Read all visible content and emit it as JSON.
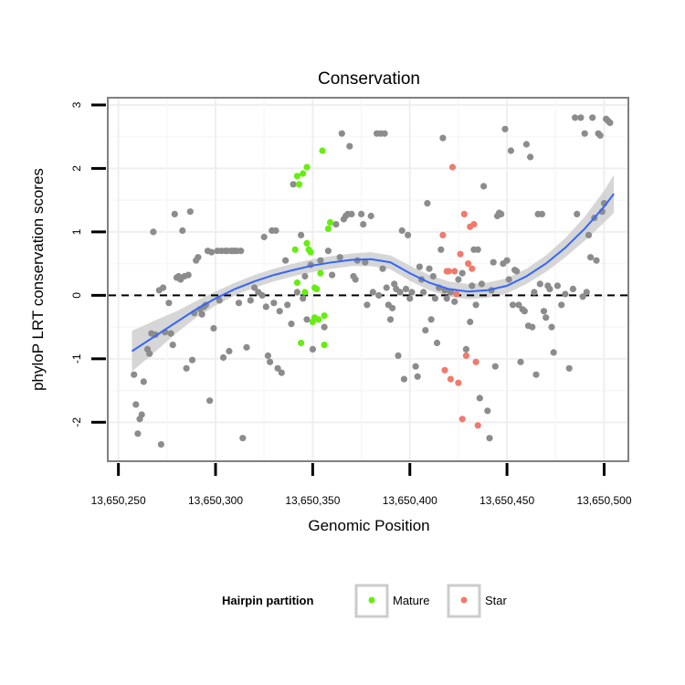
{
  "chart_data": {
    "type": "scatter",
    "title": "Conservation",
    "xlabel": "Genomic Position",
    "ylabel": "phyloP LRT conservation scores",
    "xlim": [
      13650245,
      13650512
    ],
    "ylim": [
      -2.6,
      3.1
    ],
    "x_ticks": [
      13650250,
      13650300,
      13650350,
      13650400,
      13650450,
      13650500
    ],
    "x_tick_labels": [
      "13,650,250",
      "13,650,300",
      "13,650,350",
      "13,650,400",
      "13,650,450",
      "13,650,500"
    ],
    "y_ticks": [
      -2,
      -1,
      0,
      1,
      2,
      3
    ],
    "y_tick_labels": [
      "-2",
      "-1",
      "0",
      "1",
      "2",
      "3"
    ],
    "reference_line": {
      "y": 0,
      "style": "dashed",
      "color": "#000000"
    },
    "grid": true,
    "legend": {
      "title": "Hairpin partition",
      "position": "bottom",
      "entries": [
        {
          "label": "Mature",
          "color": "#66ee11"
        },
        {
          "label": "Star",
          "color": "#f07b6c"
        }
      ]
    },
    "colors": {
      "other": "#8c8c8c",
      "Mature": "#66ee11",
      "Star": "#f07b6c",
      "smooth": "#3366ff",
      "ribbon": "#cccccc"
    },
    "series": [
      {
        "name": "",
        "group": "other",
        "points": [
          [
            13650258,
            -1.25
          ],
          [
            13650259,
            -1.72
          ],
          [
            13650260,
            -2.18
          ],
          [
            13650261,
            -1.95
          ],
          [
            13650262,
            -1.88
          ],
          [
            13650263,
            -1.36
          ],
          [
            13650265,
            -0.85
          ],
          [
            13650266,
            -0.92
          ],
          [
            13650267,
            -0.6
          ],
          [
            13650268,
            1.0
          ],
          [
            13650269,
            -0.62
          ],
          [
            13650271,
            0.08
          ],
          [
            13650272,
            -2.35
          ],
          [
            13650273,
            0.12
          ],
          [
            13650274,
            -0.58
          ],
          [
            13650276,
            -0.12
          ],
          [
            13650277,
            -0.6
          ],
          [
            13650278,
            -0.78
          ],
          [
            13650279,
            1.28
          ],
          [
            13650280,
            0.28
          ],
          [
            13650281,
            0.3
          ],
          [
            13650282,
            0.25
          ],
          [
            13650283,
            1.02
          ],
          [
            13650284,
            0.3
          ],
          [
            13650285,
            -1.15
          ],
          [
            13650286,
            0.32
          ],
          [
            13650287,
            1.32
          ],
          [
            13650288,
            -1.02
          ],
          [
            13650289,
            -0.28
          ],
          [
            13650290,
            0.55
          ],
          [
            13650291,
            0.6
          ],
          [
            13650292,
            -0.22
          ],
          [
            13650293,
            -0.3
          ],
          [
            13650294,
            -0.18
          ],
          [
            13650295,
            -0.15
          ],
          [
            13650296,
            0.7
          ],
          [
            13650297,
            -1.66
          ],
          [
            13650298,
            0.68
          ],
          [
            13650299,
            -0.52
          ],
          [
            13650301,
            0.7
          ],
          [
            13650302,
            -0.08
          ],
          [
            13650303,
            0.7
          ],
          [
            13650304,
            -0.98
          ],
          [
            13650305,
            0.7
          ],
          [
            13650306,
            0.7
          ],
          [
            13650307,
            -0.88
          ],
          [
            13650308,
            0.7
          ],
          [
            13650309,
            0.7
          ],
          [
            13650310,
            0.7
          ],
          [
            13650311,
            0.7
          ],
          [
            13650312,
            -0.12
          ],
          [
            13650313,
            0.7
          ],
          [
            13650314,
            -2.25
          ],
          [
            13650316,
            -0.82
          ],
          [
            13650318,
            -0.08
          ],
          [
            13650320,
            0.12
          ],
          [
            13650322,
            0.05
          ],
          [
            13650324,
            0.0
          ],
          [
            13650325,
            0.92
          ],
          [
            13650326,
            -0.18
          ],
          [
            13650327,
            -0.95
          ],
          [
            13650328,
            -1.05
          ],
          [
            13650329,
            1.02
          ],
          [
            13650330,
            -0.12
          ],
          [
            13650331,
            1.02
          ],
          [
            13650332,
            -1.15
          ],
          [
            13650333,
            -0.25
          ],
          [
            13650334,
            -1.22
          ],
          [
            13650336,
            0.55
          ],
          [
            13650337,
            -0.15
          ],
          [
            13650339,
            -0.45
          ],
          [
            13650340,
            1.75
          ],
          [
            13650342,
            0.05
          ],
          [
            13650344,
            0.95
          ],
          [
            13650345,
            -0.05
          ],
          [
            13650346,
            0.3
          ],
          [
            13650347,
            -0.38
          ],
          [
            13650349,
            0.48
          ],
          [
            13650350,
            -0.85
          ],
          [
            13650352,
            0.1
          ],
          [
            13650354,
            0.55
          ],
          [
            13650356,
            -0.5
          ],
          [
            13650358,
            0.7
          ],
          [
            13650360,
            0.32
          ],
          [
            13650362,
            1.12
          ],
          [
            13650364,
            0.6
          ],
          [
            13650365,
            2.55
          ],
          [
            13650366,
            1.2
          ],
          [
            13650367,
            1.25
          ],
          [
            13650368,
            1.28
          ],
          [
            13650369,
            2.35
          ],
          [
            13650370,
            1.28
          ],
          [
            13650371,
            0.3
          ],
          [
            13650372,
            0.25
          ],
          [
            13650373,
            0.55
          ],
          [
            13650375,
            1.28
          ],
          [
            13650376,
            1.12
          ],
          [
            13650377,
            0.52
          ],
          [
            13650378,
            -0.15
          ],
          [
            13650380,
            1.25
          ],
          [
            13650381,
            0.05
          ],
          [
            13650383,
            2.55
          ],
          [
            13650384,
            0.0
          ],
          [
            13650385,
            2.55
          ],
          [
            13650386,
            0.42
          ],
          [
            13650387,
            2.55
          ],
          [
            13650388,
            0.12
          ],
          [
            13650389,
            -0.15
          ],
          [
            13650390,
            -0.38
          ],
          [
            13650391,
            -0.2
          ],
          [
            13650392,
            0.18
          ],
          [
            13650393,
            0.1
          ],
          [
            13650394,
            -0.95
          ],
          [
            13650395,
            0.05
          ],
          [
            13650396,
            1.02
          ],
          [
            13650397,
            -1.32
          ],
          [
            13650398,
            0.1
          ],
          [
            13650399,
            0.95
          ],
          [
            13650400,
            -0.05
          ],
          [
            13650401,
            0.05
          ],
          [
            13650403,
            -1.12
          ],
          [
            13650404,
            -1.28
          ],
          [
            13650405,
            0.45
          ],
          [
            13650406,
            0.25
          ],
          [
            13650407,
            0.05
          ],
          [
            13650408,
            -0.55
          ],
          [
            13650409,
            1.45
          ],
          [
            13650410,
            0.42
          ],
          [
            13650411,
            -0.38
          ],
          [
            13650412,
            0.3
          ],
          [
            13650413,
            -0.05
          ],
          [
            13650414,
            -0.75
          ],
          [
            13650415,
            0.12
          ],
          [
            13650416,
            0.72
          ],
          [
            13650417,
            2.48
          ],
          [
            13650418,
            0.08
          ],
          [
            13650419,
            -0.05
          ],
          [
            13650421,
            0.05
          ],
          [
            13650423,
            -0.1
          ],
          [
            13650425,
            0.25
          ],
          [
            13650427,
            0.35
          ],
          [
            13650429,
            -0.85
          ],
          [
            13650431,
            -0.42
          ],
          [
            13650432,
            0.15
          ],
          [
            13650433,
            0.72
          ],
          [
            13650434,
            -0.15
          ],
          [
            13650435,
            0.72
          ],
          [
            13650436,
            -1.62
          ],
          [
            13650437,
            0.18
          ],
          [
            13650438,
            1.72
          ],
          [
            13650440,
            -1.82
          ],
          [
            13650441,
            -2.25
          ],
          [
            13650442,
            0.08
          ],
          [
            13650443,
            0.52
          ],
          [
            13650444,
            -1.12
          ],
          [
            13650445,
            1.25
          ],
          [
            13650446,
            1.3
          ],
          [
            13650447,
            1.28
          ],
          [
            13650448,
            0.5
          ],
          [
            13650449,
            2.62
          ],
          [
            13650450,
            0.55
          ],
          [
            13650451,
            0.25
          ],
          [
            13650452,
            2.28
          ],
          [
            13650453,
            -0.15
          ],
          [
            13650454,
            0.4
          ],
          [
            13650455,
            0.38
          ],
          [
            13650456,
            -0.15
          ],
          [
            13650457,
            -1.05
          ],
          [
            13650458,
            -0.22
          ],
          [
            13650459,
            -0.25
          ],
          [
            13650460,
            2.38
          ],
          [
            13650461,
            -0.48
          ],
          [
            13650462,
            2.18
          ],
          [
            13650463,
            -0.5
          ],
          [
            13650464,
            0.05
          ],
          [
            13650465,
            -1.25
          ],
          [
            13650466,
            1.28
          ],
          [
            13650467,
            0.18
          ],
          [
            13650468,
            1.28
          ],
          [
            13650469,
            -0.25
          ],
          [
            13650470,
            -0.35
          ],
          [
            13650471,
            0.15
          ],
          [
            13650472,
            0.1
          ],
          [
            13650473,
            -0.5
          ],
          [
            13650474,
            -0.9
          ],
          [
            13650476,
            0.15
          ],
          [
            13650478,
            -0.15
          ],
          [
            13650480,
            0.02
          ],
          [
            13650482,
            -1.15
          ],
          [
            13650484,
            0.1
          ],
          [
            13650485,
            2.8
          ],
          [
            13650486,
            1.28
          ],
          [
            13650488,
            2.8
          ],
          [
            13650489,
            -0.02
          ],
          [
            13650490,
            2.55
          ],
          [
            13650491,
            0.05
          ],
          [
            13650492,
            0.95
          ],
          [
            13650493,
            0.6
          ],
          [
            13650494,
            2.8
          ],
          [
            13650495,
            1.22
          ],
          [
            13650496,
            0.55
          ],
          [
            13650497,
            2.55
          ],
          [
            13650498,
            2.52
          ],
          [
            13650499,
            1.32
          ],
          [
            13650500,
            1.45
          ],
          [
            13650501,
            2.78
          ],
          [
            13650502,
            2.75
          ],
          [
            13650503,
            2.72
          ]
        ]
      },
      {
        "name": "Mature",
        "group": "Mature",
        "points": [
          [
            13650341,
            0.72
          ],
          [
            13650342,
            1.88
          ],
          [
            13650342,
            0.2
          ],
          [
            13650343,
            1.75
          ],
          [
            13650344,
            -0.75
          ],
          [
            13650345,
            1.92
          ],
          [
            13650346,
            0.05
          ],
          [
            13650347,
            2.02
          ],
          [
            13650347,
            0.82
          ],
          [
            13650348,
            0.72
          ],
          [
            13650349,
            0.68
          ],
          [
            13650350,
            -0.42
          ],
          [
            13650351,
            -0.35
          ],
          [
            13650351,
            0.12
          ],
          [
            13650352,
            0.1
          ],
          [
            13650353,
            -0.38
          ],
          [
            13650354,
            0.35
          ],
          [
            13650355,
            2.28
          ],
          [
            13650356,
            -0.32
          ],
          [
            13650356,
            -0.78
          ],
          [
            13650358,
            1.05
          ],
          [
            13650359,
            1.15
          ]
        ]
      },
      {
        "name": "Star",
        "group": "Star",
        "points": [
          [
            13650417,
            0.95
          ],
          [
            13650418,
            -1.18
          ],
          [
            13650419,
            0.38
          ],
          [
            13650420,
            0.38
          ],
          [
            13650421,
            -1.32
          ],
          [
            13650422,
            2.02
          ],
          [
            13650423,
            0.38
          ],
          [
            13650424,
            0.02
          ],
          [
            13650425,
            -1.38
          ],
          [
            13650426,
            0.65
          ],
          [
            13650427,
            -1.95
          ],
          [
            13650428,
            1.28
          ],
          [
            13650429,
            -0.95
          ],
          [
            13650430,
            0.5
          ],
          [
            13650431,
            1.08
          ],
          [
            13650432,
            0.42
          ],
          [
            13650433,
            1.12
          ],
          [
            13650434,
            -1.05
          ],
          [
            13650435,
            -2.05
          ]
        ]
      }
    ],
    "smooth_line": {
      "x": [
        13650257,
        13650270,
        13650280,
        13650290,
        13650300,
        13650310,
        13650320,
        13650330,
        13650340,
        13650350,
        13650360,
        13650370,
        13650380,
        13650390,
        13650400,
        13650410,
        13650420,
        13650430,
        13650440,
        13650450,
        13650460,
        13650470,
        13650480,
        13650490,
        13650500,
        13650505
      ],
      "y": [
        -0.88,
        -0.62,
        -0.42,
        -0.22,
        -0.05,
        0.1,
        0.22,
        0.32,
        0.4,
        0.47,
        0.52,
        0.56,
        0.57,
        0.52,
        0.35,
        0.2,
        0.1,
        0.06,
        0.08,
        0.15,
        0.3,
        0.5,
        0.75,
        1.05,
        1.4,
        1.6
      ],
      "ribbon_half_width": [
        0.32,
        0.24,
        0.17,
        0.13,
        0.11,
        0.1,
        0.1,
        0.1,
        0.1,
        0.1,
        0.1,
        0.1,
        0.11,
        0.11,
        0.12,
        0.12,
        0.12,
        0.12,
        0.12,
        0.12,
        0.12,
        0.13,
        0.15,
        0.19,
        0.25,
        0.3
      ]
    }
  }
}
